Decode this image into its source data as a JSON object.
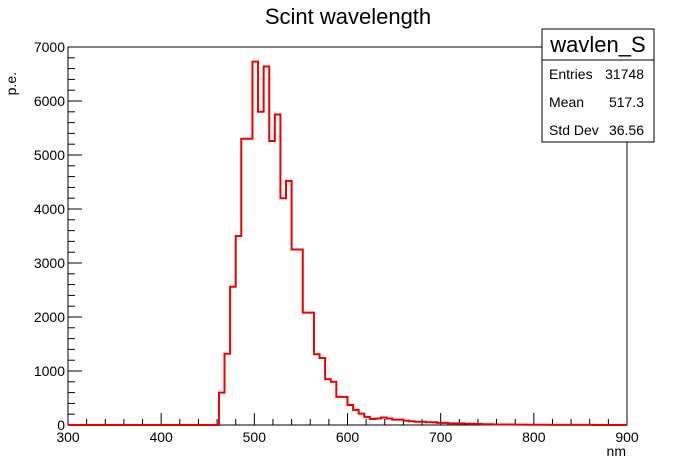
{
  "chart_data": {
    "type": "bar",
    "title": "Scint wavelength",
    "xlabel": "nm",
    "ylabel": "p.e.",
    "xlim": [
      300,
      900
    ],
    "ylim": [
      0,
      7000
    ],
    "x_ticks": [
      "300",
      "400",
      "500",
      "600",
      "700",
      "800",
      "900"
    ],
    "y_ticks": [
      "0",
      "1000",
      "2000",
      "3000",
      "4000",
      "5000",
      "6000",
      "7000"
    ],
    "bin_width": 6,
    "bin_edges_start": 300,
    "values": [
      0,
      0,
      0,
      0,
      0,
      0,
      0,
      0,
      0,
      0,
      0,
      0,
      0,
      0,
      0,
      0,
      0,
      0,
      0,
      0,
      0,
      0,
      0,
      0,
      0,
      0,
      0,
      600,
      1320,
      2560,
      3500,
      5300,
      5300,
      6730,
      5800,
      6640,
      5260,
      5750,
      4200,
      4520,
      3250,
      3250,
      2080,
      2080,
      1310,
      1240,
      850,
      800,
      520,
      520,
      370,
      280,
      210,
      150,
      110,
      120,
      140,
      120,
      100,
      100,
      80,
      70,
      60,
      60,
      50,
      50,
      40,
      40,
      30,
      30,
      30,
      25,
      20,
      20,
      15,
      15,
      10,
      10,
      10,
      10,
      8,
      8,
      5,
      5,
      5,
      5,
      3,
      3,
      3,
      3,
      2,
      2,
      2,
      2,
      1,
      1,
      1,
      1,
      1,
      0
    ],
    "line_color": "#ee0000",
    "grid": false,
    "legend": {
      "title": "wavlen_S",
      "rows": [
        {
          "label": "Entries",
          "value": "31748"
        },
        {
          "label": "Mean",
          "value": "517.3"
        },
        {
          "label": "Std Dev",
          "value": "36.56"
        }
      ],
      "placement": "top-right"
    }
  }
}
